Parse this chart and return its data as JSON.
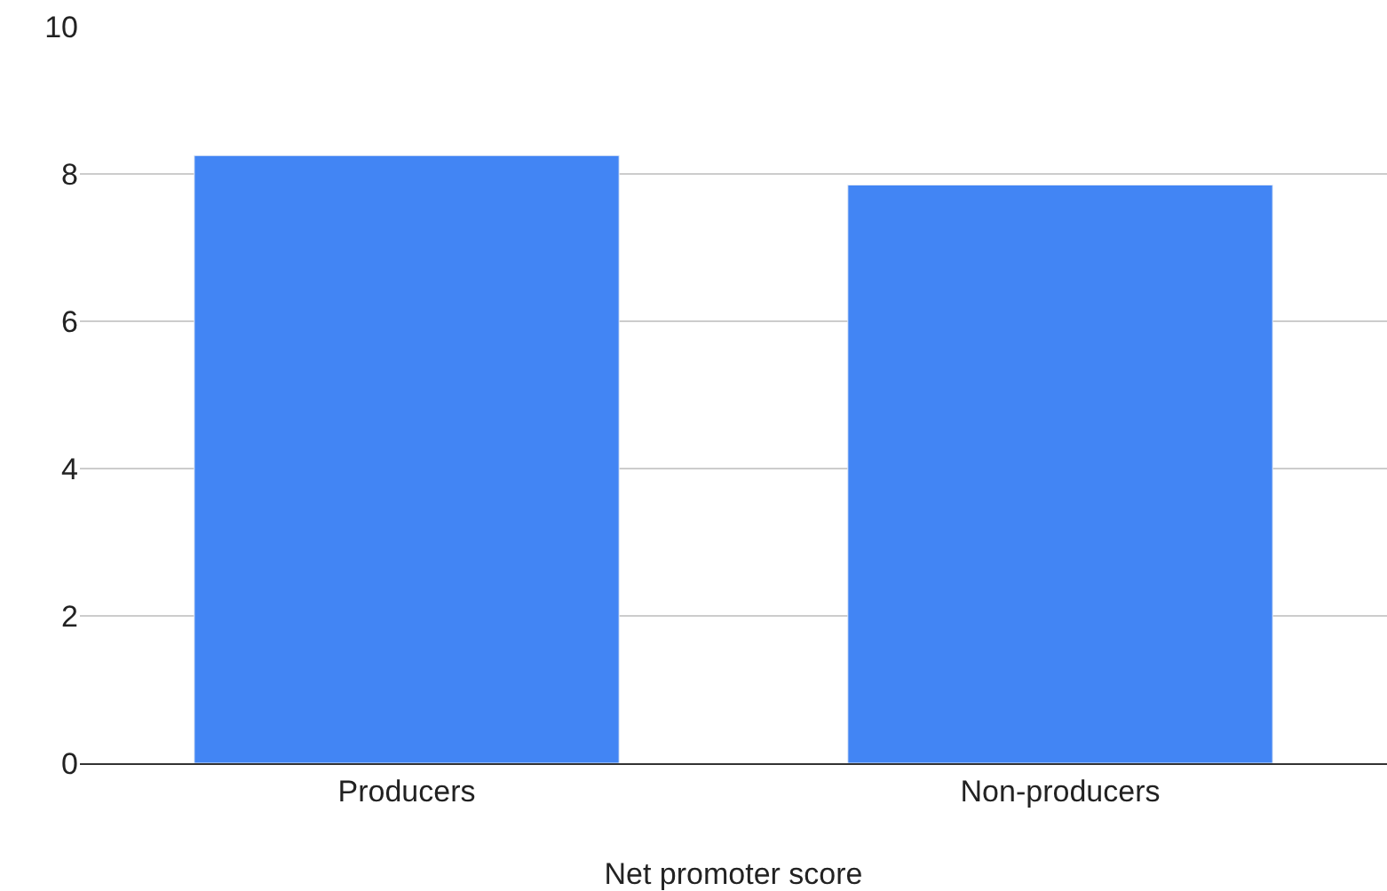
{
  "chart_data": {
    "type": "bar",
    "xlabel": "Net promoter score",
    "categories": [
      "Producers",
      "Non-producers"
    ],
    "series": [
      {
        "color": "#4285f4",
        "values": [
          8.25,
          7.85
        ]
      }
    ],
    "ylim": [
      0,
      10
    ],
    "yticks": [
      0,
      2,
      4,
      6,
      8,
      10
    ],
    "grid": "y",
    "legend": false
  }
}
